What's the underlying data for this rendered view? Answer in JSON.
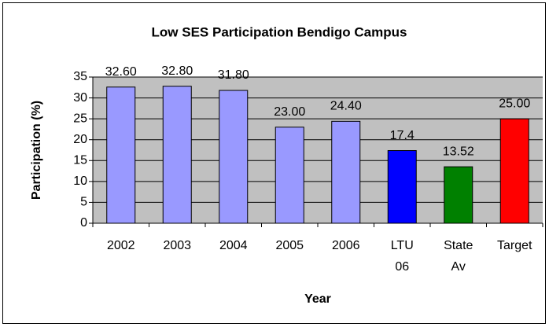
{
  "chart_data": {
    "type": "bar",
    "title": "Low SES Participation Bendigo Campus",
    "x_label": "Year",
    "y_label": "Participation (%)",
    "categories": [
      "2002",
      "2003",
      "2004",
      "2005",
      "2006",
      "LTU 06",
      "State Av",
      "Target"
    ],
    "values": [
      32.6,
      32.8,
      31.8,
      23.0,
      24.4,
      17.4,
      13.52,
      25.0
    ],
    "value_labels": [
      "32.60",
      "32.80",
      "31.80",
      "23.00",
      "24.40",
      "17.4",
      "13.52",
      "25.00"
    ],
    "colors": [
      "#9999ff",
      "#9999ff",
      "#9999ff",
      "#9999ff",
      "#9999ff",
      "#0000ff",
      "#008000",
      "#ff0000"
    ],
    "ylim": [
      0,
      35
    ],
    "yticks": [
      0,
      5,
      10,
      15,
      20,
      25,
      30,
      35
    ],
    "grid": true
  }
}
